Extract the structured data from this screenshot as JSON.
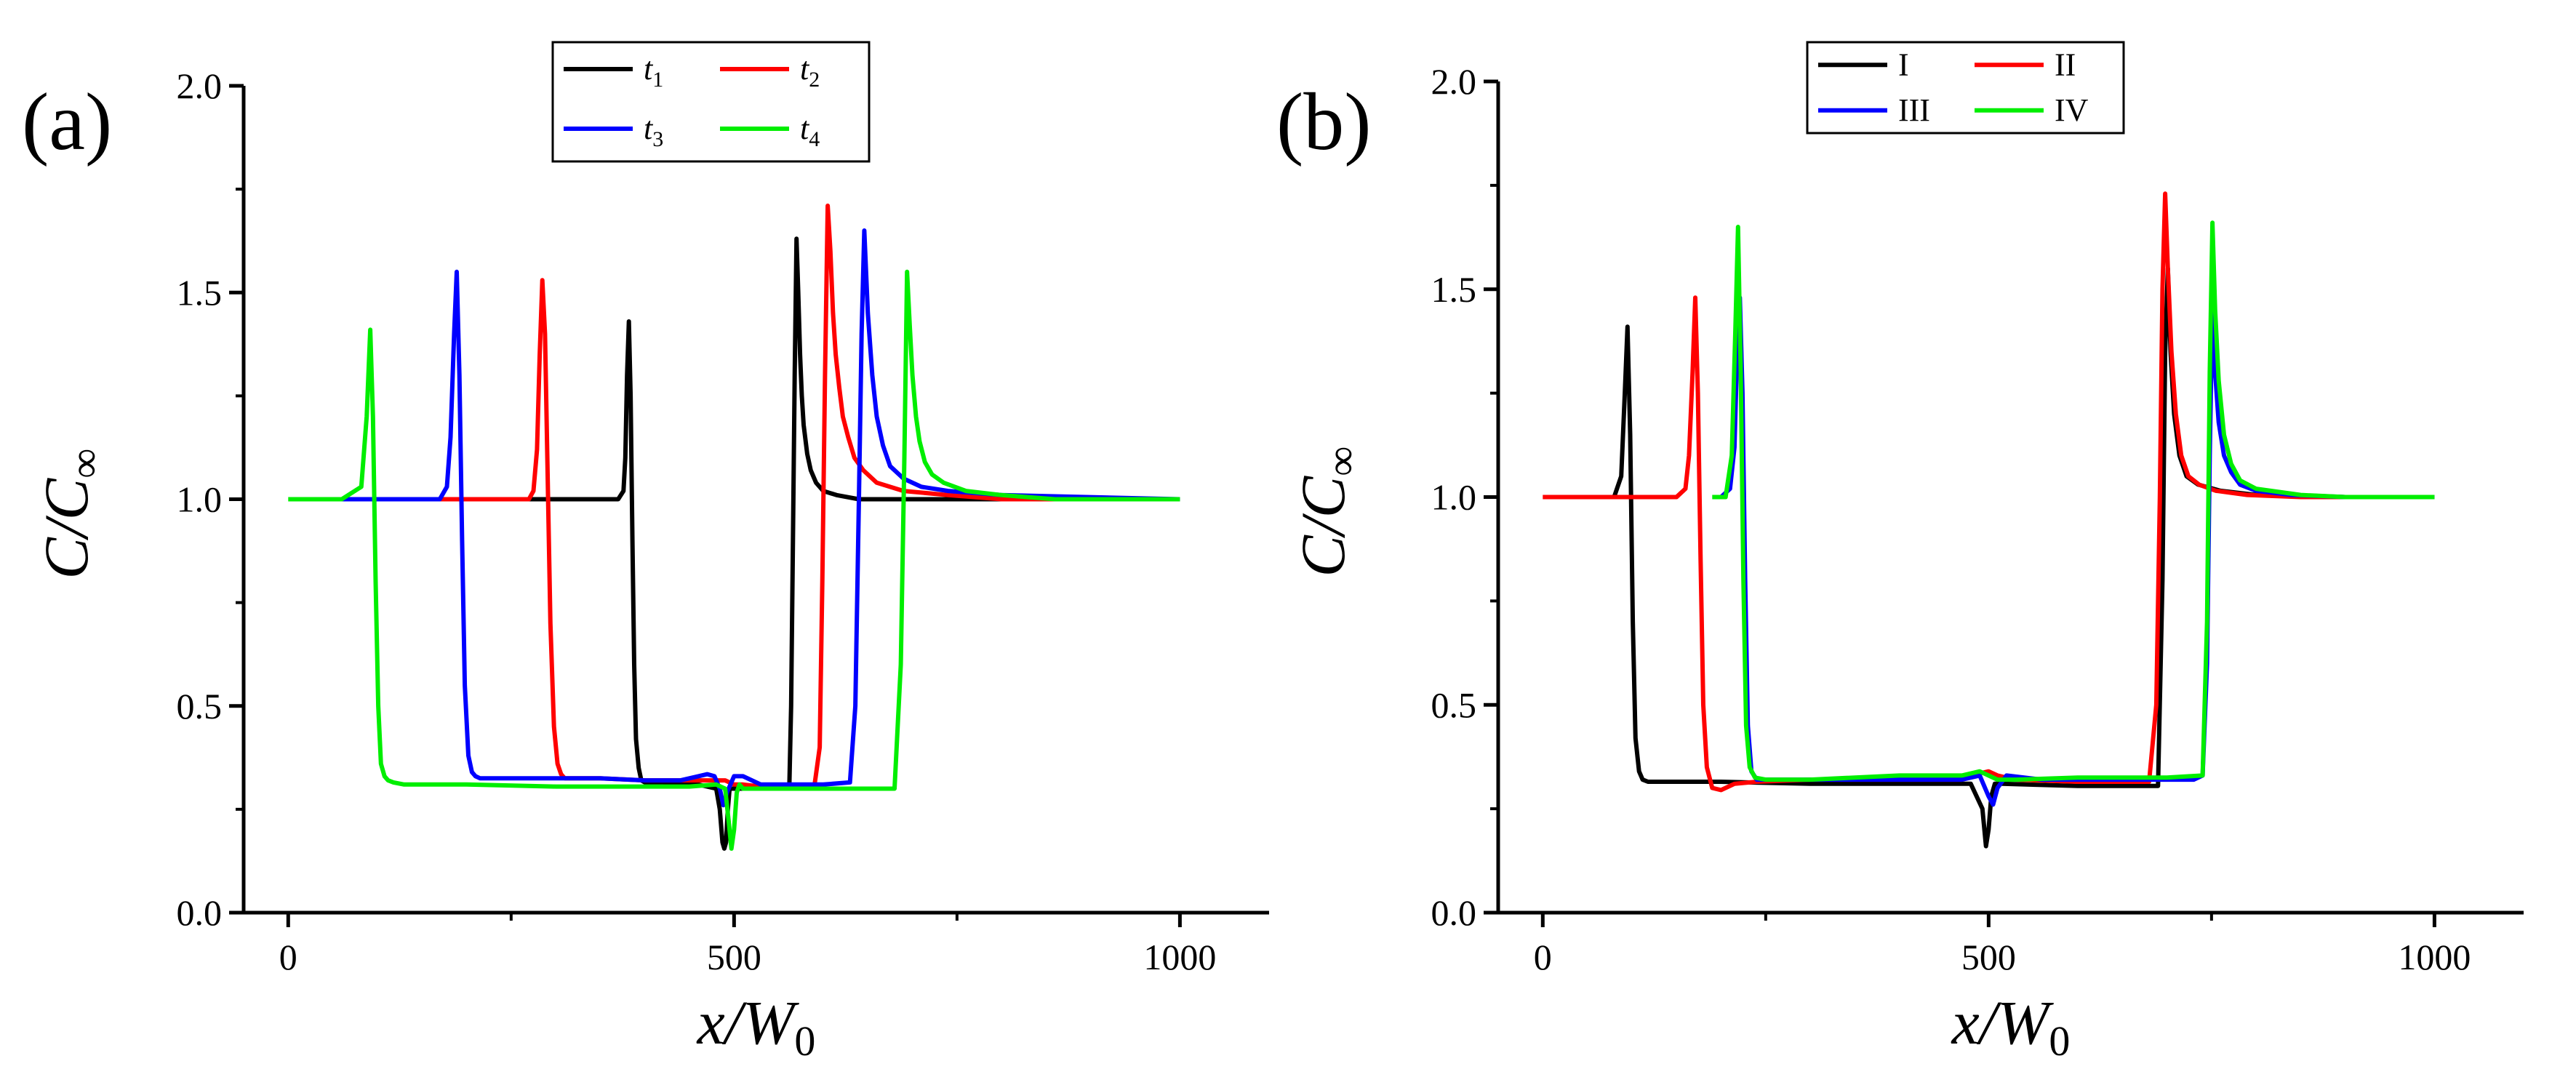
{
  "figure": {
    "description_free": true
  },
  "chart_data": [
    {
      "panel": "a",
      "panel_label": "(a)",
      "type": "line",
      "xlabel": "x/W",
      "xlabel_sub": "0",
      "ylabel": "C/C",
      "ylabel_sub": "∞",
      "xlim": [
        -50,
        1100
      ],
      "ylim": [
        0,
        2
      ],
      "xticks": [
        0,
        500,
        1000
      ],
      "yticks": [
        0.0,
        0.5,
        1.0,
        1.5,
        2.0
      ],
      "xtick_labels": [
        "0",
        "500",
        "1000"
      ],
      "ytick_labels": [
        "0.0",
        "0.5",
        "1.0",
        "1.5",
        "2.0"
      ],
      "legend_placement": "top-center",
      "series": [
        {
          "key": "t1",
          "name": "t",
          "sub": "1",
          "color": "#000000",
          "x": [
            150,
            300,
            370,
            376,
            378,
            380,
            382,
            384,
            386,
            388,
            390,
            393,
            396,
            400,
            420,
            460,
            480,
            484,
            487,
            489,
            491,
            493,
            495,
            500,
            520,
            550,
            562,
            564,
            566,
            568,
            570,
            572,
            574,
            576,
            578,
            582,
            586,
            592,
            600,
            615,
            640,
            700,
            800,
            1000
          ],
          "y": [
            1.0,
            1.0,
            1.0,
            1.02,
            1.1,
            1.3,
            1.43,
            1.25,
            0.9,
            0.6,
            0.42,
            0.35,
            0.32,
            0.315,
            0.315,
            0.31,
            0.3,
            0.25,
            0.17,
            0.155,
            0.17,
            0.25,
            0.3,
            0.3,
            0.3,
            0.305,
            0.31,
            0.5,
            0.9,
            1.3,
            1.63,
            1.5,
            1.35,
            1.25,
            1.18,
            1.11,
            1.07,
            1.04,
            1.02,
            1.01,
            1.0,
            1.0,
            1.0,
            1.0
          ]
        },
        {
          "key": "t2",
          "name": "t",
          "sub": "2",
          "color": "#ff0000",
          "x": [
            120,
            270,
            275,
            279,
            282,
            285,
            288,
            291,
            294,
            298,
            302,
            306,
            310,
            350,
            400,
            440,
            470,
            490,
            500,
            510,
            530,
            560,
            590,
            596,
            599,
            602,
            605,
            608,
            611,
            614,
            618,
            622,
            628,
            635,
            645,
            660,
            690,
            740,
            800,
            1000
          ],
          "y": [
            1.0,
            1.0,
            1.02,
            1.12,
            1.35,
            1.53,
            1.4,
            1.05,
            0.7,
            0.45,
            0.36,
            0.335,
            0.325,
            0.325,
            0.32,
            0.32,
            0.32,
            0.32,
            0.31,
            0.31,
            0.305,
            0.305,
            0.305,
            0.4,
            0.8,
            1.3,
            1.71,
            1.6,
            1.45,
            1.35,
            1.27,
            1.2,
            1.15,
            1.1,
            1.07,
            1.04,
            1.02,
            1.01,
            1.0,
            1.0
          ]
        },
        {
          "key": "t3",
          "name": "t",
          "sub": "3",
          "color": "#0000ff",
          "x": [
            60,
            170,
            178,
            182,
            186,
            189,
            192,
            195,
            198,
            202,
            206,
            210,
            215,
            250,
            300,
            350,
            400,
            440,
            460,
            470,
            478,
            484,
            488,
            492,
            500,
            510,
            530,
            560,
            600,
            630,
            636,
            640,
            643,
            646,
            650,
            655,
            660,
            667,
            675,
            690,
            710,
            740,
            800,
            1000
          ],
          "y": [
            1.0,
            1.0,
            1.03,
            1.15,
            1.4,
            1.55,
            1.3,
            0.9,
            0.55,
            0.38,
            0.34,
            0.33,
            0.325,
            0.325,
            0.325,
            0.325,
            0.32,
            0.32,
            0.33,
            0.335,
            0.33,
            0.3,
            0.26,
            0.29,
            0.33,
            0.33,
            0.31,
            0.31,
            0.31,
            0.315,
            0.5,
            1.0,
            1.4,
            1.65,
            1.45,
            1.3,
            1.2,
            1.13,
            1.08,
            1.05,
            1.03,
            1.02,
            1.01,
            1.0
          ]
        },
        {
          "key": "t4",
          "name": "t",
          "sub": "4",
          "color": "#00ee00",
          "x": [
            0,
            60,
            82,
            88,
            92,
            95,
            98,
            101,
            104,
            108,
            112,
            118,
            130,
            200,
            300,
            400,
            450,
            480,
            490,
            494,
            497,
            500,
            503,
            506,
            510,
            520,
            560,
            600,
            650,
            680,
            687,
            691,
            694,
            697,
            700,
            704,
            708,
            714,
            722,
            735,
            760,
            800,
            860,
            1000
          ],
          "y": [
            1.0,
            1.0,
            1.03,
            1.2,
            1.41,
            1.2,
            0.8,
            0.5,
            0.36,
            0.33,
            0.32,
            0.315,
            0.31,
            0.31,
            0.305,
            0.305,
            0.305,
            0.31,
            0.3,
            0.22,
            0.155,
            0.2,
            0.29,
            0.31,
            0.3,
            0.3,
            0.3,
            0.3,
            0.3,
            0.3,
            0.6,
            1.1,
            1.55,
            1.42,
            1.3,
            1.2,
            1.14,
            1.09,
            1.06,
            1.04,
            1.02,
            1.01,
            1.0,
            1.0
          ]
        }
      ]
    },
    {
      "panel": "b",
      "panel_label": "(b)",
      "type": "line",
      "xlabel": "x/W",
      "xlabel_sub": "0",
      "ylabel": "C/C",
      "ylabel_sub": "∞",
      "xlim": [
        -50,
        1100
      ],
      "ylim": [
        0,
        2
      ],
      "xticks": [
        0,
        500,
        1000
      ],
      "yticks": [
        0.0,
        0.5,
        1.0,
        1.5,
        2.0
      ],
      "xtick_labels": [
        "0",
        "500",
        "1000"
      ],
      "ytick_labels": [
        "0.0",
        "0.5",
        "1.0",
        "1.5",
        "2.0"
      ],
      "legend_placement": "top-center",
      "series": [
        {
          "key": "I",
          "name": "I",
          "sub": "",
          "color": "#000000",
          "x": [
            60,
            80,
            88,
            92,
            95,
            98,
            101,
            104,
            108,
            112,
            118,
            200,
            300,
            400,
            480,
            493,
            497,
            500,
            503,
            507,
            515,
            600,
            690,
            695,
            698,
            701,
            704,
            708,
            714,
            722,
            735,
            760,
            800,
            900,
            1000
          ],
          "y": [
            1.0,
            1.0,
            1.05,
            1.25,
            1.41,
            1.15,
            0.7,
            0.42,
            0.34,
            0.32,
            0.315,
            0.315,
            0.31,
            0.31,
            0.31,
            0.25,
            0.16,
            0.2,
            0.28,
            0.31,
            0.31,
            0.305,
            0.305,
            0.8,
            1.35,
            1.55,
            1.35,
            1.2,
            1.1,
            1.05,
            1.03,
            1.015,
            1.005,
            1.0,
            1.0
          ]
        },
        {
          "key": "II",
          "name": "II",
          "sub": "",
          "color": "#ff0000",
          "x": [
            0,
            150,
            160,
            164,
            168,
            171,
            174,
            177,
            180,
            184,
            190,
            200,
            215,
            240,
            300,
            400,
            470,
            490,
            500,
            510,
            530,
            600,
            680,
            688,
            692,
            695,
            698,
            701,
            705,
            710,
            716,
            724,
            736,
            755,
            790,
            850,
            1000
          ],
          "y": [
            1.0,
            1.0,
            1.02,
            1.1,
            1.3,
            1.48,
            1.25,
            0.85,
            0.5,
            0.35,
            0.3,
            0.295,
            0.31,
            0.315,
            0.32,
            0.32,
            0.32,
            0.335,
            0.34,
            0.33,
            0.32,
            0.315,
            0.315,
            0.5,
            1.0,
            1.5,
            1.73,
            1.55,
            1.35,
            1.2,
            1.1,
            1.05,
            1.03,
            1.015,
            1.005,
            1.0,
            1.0
          ]
        },
        {
          "key": "III",
          "name": "III",
          "sub": "",
          "color": "#0000ff",
          "x": [
            200,
            210,
            215,
            218,
            221,
            224,
            227,
            230,
            234,
            240,
            300,
            400,
            470,
            490,
            500,
            505,
            510,
            520,
            560,
            600,
            650,
            700,
            730,
            740,
            745,
            748,
            751,
            754,
            758,
            764,
            772,
            782,
            800,
            840,
            900,
            1000
          ],
          "y": [
            1.0,
            1.02,
            1.12,
            1.35,
            1.48,
            1.25,
            0.8,
            0.45,
            0.34,
            0.32,
            0.32,
            0.32,
            0.32,
            0.33,
            0.28,
            0.26,
            0.3,
            0.33,
            0.32,
            0.32,
            0.32,
            0.32,
            0.32,
            0.33,
            0.6,
            1.1,
            1.48,
            1.3,
            1.18,
            1.1,
            1.06,
            1.03,
            1.015,
            1.005,
            1.0,
            1.0
          ]
        },
        {
          "key": "IV",
          "name": "IV",
          "sub": "",
          "color": "#00ee00",
          "x": [
            190,
            205,
            212,
            216,
            219,
            222,
            225,
            228,
            232,
            238,
            250,
            300,
            400,
            470,
            490,
            500,
            510,
            530,
            600,
            700,
            740,
            745,
            748,
            751,
            754,
            758,
            764,
            772,
            782,
            800,
            850,
            900,
            1000
          ],
          "y": [
            1.0,
            1.0,
            1.1,
            1.4,
            1.65,
            1.3,
            0.8,
            0.45,
            0.35,
            0.325,
            0.32,
            0.32,
            0.33,
            0.33,
            0.34,
            0.33,
            0.32,
            0.32,
            0.325,
            0.325,
            0.33,
            0.7,
            1.3,
            1.66,
            1.45,
            1.28,
            1.15,
            1.08,
            1.04,
            1.02,
            1.005,
            1.0,
            1.0
          ]
        }
      ]
    }
  ]
}
